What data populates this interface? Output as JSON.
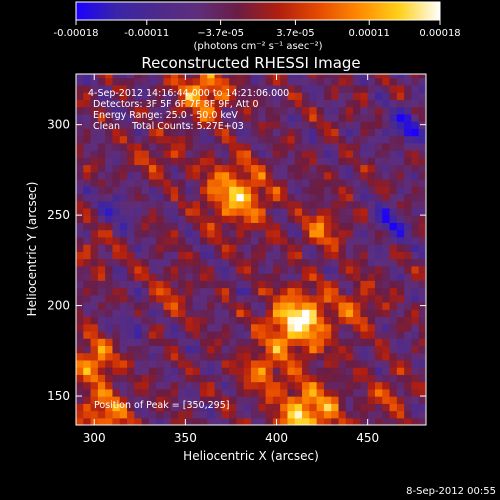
{
  "chart_data": {
    "type": "heatmap",
    "title": "Reconstructed RHESSI Image",
    "xlabel": "Heliocentric X (arcsec)",
    "ylabel": "Heliocentric Y (arcsec)",
    "xlim": [
      290,
      482
    ],
    "ylim": [
      134,
      328
    ],
    "xticks": [
      300,
      350,
      400,
      450
    ],
    "yticks": [
      150,
      200,
      250,
      300
    ],
    "colorbar": {
      "ticks": [
        -0.00018,
        -0.00011,
        -3.7e-05,
        3.7e-05,
        0.00011,
        0.00018
      ],
      "tick_labels": [
        "-0.00018",
        "-0.00011",
        "−3.7e-05",
        "3.7e-05",
        "0.00011",
        "0.00018"
      ],
      "range": [
        -0.00018,
        0.00018
      ],
      "units_label": "(photons cm⁻² s⁻¹ asec⁻²)",
      "colormap": [
        "#1c00ff",
        "#3a24a8",
        "#4c2a8c",
        "#5e2e7c",
        "#6a1d44",
        "#b01e10",
        "#e64a00",
        "#ff8a00",
        "#ffd11a",
        "#ffffff"
      ]
    },
    "annotations": [
      "4-Sep-2012 14:16:44.000 to 14:21:06.000",
      "Detectors: 3F 5F 6F 7F 8F 9F, Att 0",
      "Energy Range: 25.0 - 50.0 keV",
      "Clean    Total Counts: 5.27E+03"
    ],
    "peak_label": "Position of Peak = [350,295]",
    "peak": {
      "x": 350,
      "y": 295
    },
    "sources": [
      {
        "x": 412,
        "y": 191,
        "amp": 1.15,
        "sigma": 12
      },
      {
        "x": 417,
        "y": 140,
        "amp": 1.0,
        "sigma": 12
      },
      {
        "x": 378,
        "y": 262,
        "amp": 0.95,
        "sigma": 12
      },
      {
        "x": 360,
        "y": 318,
        "amp": 0.85,
        "sigma": 10
      },
      {
        "x": 425,
        "y": 243,
        "amp": 0.55,
        "sigma": 8
      },
      {
        "x": 300,
        "y": 170,
        "amp": 0.75,
        "sigma": 9
      },
      {
        "x": 305,
        "y": 140,
        "amp": 0.7,
        "sigma": 10
      },
      {
        "x": 392,
        "y": 165,
        "amp": 0.6,
        "sigma": 9
      },
      {
        "x": 445,
        "y": 200,
        "amp": 0.45,
        "sigma": 9
      },
      {
        "x": 340,
        "y": 205,
        "amp": 0.35,
        "sigma": 9
      },
      {
        "x": 460,
        "y": 150,
        "amp": 0.4,
        "sigma": 8
      },
      {
        "x": 300,
        "y": 230,
        "amp": 0.3,
        "sigma": 8
      },
      {
        "x": 335,
        "y": 283,
        "amp": 0.3,
        "sigma": 9
      },
      {
        "x": 470,
        "y": 300,
        "amp": -0.6,
        "sigma": 8
      },
      {
        "x": 462,
        "y": 245,
        "amp": -0.5,
        "sigma": 8
      },
      {
        "x": 312,
        "y": 255,
        "amp": -0.4,
        "sigma": 8
      },
      {
        "x": 322,
        "y": 190,
        "amp": -0.35,
        "sigma": 8
      }
    ]
  },
  "footer": {
    "date": "8-Sep-2012 00:55"
  }
}
